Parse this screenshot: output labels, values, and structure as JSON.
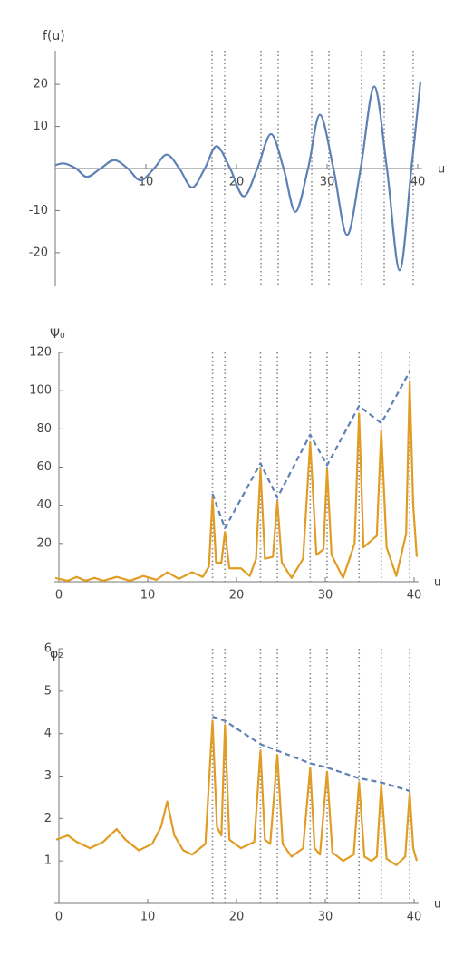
{
  "chart_data": [
    {
      "type": "line",
      "y_label": "f(u)",
      "x_label": "u",
      "xlim": [
        0,
        40.5
      ],
      "ylim": [
        -28,
        28
      ],
      "xticks": [
        10,
        20,
        30,
        40
      ],
      "yticks": [
        -20,
        -10,
        10,
        20
      ],
      "vlines": [
        17.3,
        18.7,
        22.7,
        24.6,
        28.3,
        30.2,
        33.8,
        36.3,
        39.5
      ],
      "series": [
        {
          "color": "#5e81b5",
          "dashed": false,
          "smooth": true,
          "x": [
            0,
            1,
            2.3,
            3.5,
            5,
            6.5,
            8,
            9.4,
            10.9,
            12.3,
            13.7,
            15.1,
            16.5,
            17.8,
            19.3,
            20.8,
            22.3,
            23.8,
            25.2,
            26.5,
            27.9,
            29.2,
            30.7,
            32.2,
            33.7,
            35.2,
            36.6,
            38.0,
            39.3,
            40.3
          ],
          "values": [
            0.8,
            1.2,
            0,
            -2,
            0,
            2,
            0,
            -2.8,
            0,
            3.3,
            0,
            -4.5,
            0,
            5.3,
            0,
            -6.6,
            0,
            8.2,
            0,
            -10.3,
            0,
            12.8,
            0,
            -15.8,
            0,
            19.5,
            0,
            -24.2,
            0,
            20.7
          ]
        }
      ]
    },
    {
      "type": "line",
      "y_label": "Ψ₀",
      "x_label": "u",
      "xlim": [
        -0.5,
        40.5
      ],
      "ylim": [
        0,
        120
      ],
      "xticks": [
        0,
        10,
        20,
        30,
        40
      ],
      "yticks": [
        20,
        40,
        60,
        80,
        100,
        120
      ],
      "vlines": [
        17.3,
        18.7,
        22.7,
        24.6,
        28.3,
        30.2,
        33.8,
        36.3,
        39.5
      ],
      "series": [
        {
          "color": "#e19c24",
          "dashed": false,
          "smooth": false,
          "x": [
            -0.4,
            0,
            1,
            2,
            3,
            4,
            5,
            6.5,
            8,
            9.5,
            11,
            12.2,
            13.5,
            15,
            16.2,
            16.9,
            17.3,
            17.7,
            18.3,
            18.7,
            19.2,
            20.5,
            21.5,
            22.2,
            22.7,
            23.2,
            24.1,
            24.6,
            25.1,
            26.2,
            27.5,
            28.3,
            29,
            29.8,
            30.2,
            30.7,
            32,
            33.3,
            33.8,
            34.3,
            35.8,
            36.3,
            36.9,
            38,
            39.1,
            39.5,
            39.9,
            40.3
          ],
          "values": [
            2,
            1.5,
            0.5,
            2.5,
            0.5,
            2,
            0.5,
            2.5,
            0.5,
            3,
            1,
            5,
            1.5,
            5,
            2.5,
            8,
            44,
            10,
            10,
            26,
            7,
            7,
            3,
            12,
            59,
            12,
            13,
            42,
            10,
            2,
            12,
            73,
            14,
            17,
            59,
            14,
            2,
            20,
            88,
            18,
            24,
            79,
            18,
            3,
            25,
            105,
            40,
            13
          ]
        },
        {
          "color": "#5e81b5",
          "dashed": true,
          "smooth": false,
          "x": [
            17.3,
            18.7,
            22.7,
            24.6,
            28.3,
            30.2,
            33.8,
            36.3,
            39.5
          ],
          "values": [
            46,
            28,
            62,
            44,
            77,
            61,
            92,
            83,
            110
          ]
        }
      ]
    },
    {
      "type": "line",
      "y_label": "φ₂",
      "x_label": "u",
      "xlim": [
        -0.5,
        40.5
      ],
      "ylim": [
        0,
        6
      ],
      "xticks": [
        0,
        10,
        20,
        30,
        40
      ],
      "yticks": [
        1,
        2,
        3,
        4,
        5,
        6
      ],
      "vlines": [
        17.3,
        18.7,
        22.7,
        24.6,
        28.3,
        30.2,
        33.8,
        36.3,
        39.5
      ],
      "series": [
        {
          "color": "#e19c24",
          "dashed": false,
          "smooth": false,
          "x": [
            -0.3,
            1,
            2,
            3.5,
            5,
            6.5,
            7.5,
            9,
            10.5,
            11.5,
            12.2,
            13,
            14,
            15,
            16.5,
            17.3,
            17.8,
            18.3,
            18.7,
            19.2,
            20.5,
            22,
            22.7,
            23.2,
            23.8,
            24.6,
            25.2,
            26.2,
            27.5,
            28.3,
            28.8,
            29.4,
            30.2,
            30.8,
            32,
            33.2,
            33.8,
            34.4,
            35.2,
            35.8,
            36.3,
            36.9,
            38,
            39,
            39.5,
            39.9,
            40.3
          ],
          "values": [
            1.5,
            1.6,
            1.45,
            1.3,
            1.45,
            1.75,
            1.5,
            1.25,
            1.4,
            1.8,
            2.4,
            1.6,
            1.25,
            1.15,
            1.4,
            4.3,
            1.8,
            1.6,
            4.2,
            1.5,
            1.3,
            1.45,
            3.6,
            1.5,
            1.4,
            3.5,
            1.4,
            1.1,
            1.3,
            3.2,
            1.3,
            1.15,
            3.1,
            1.2,
            1.0,
            1.15,
            2.85,
            1.1,
            1.0,
            1.1,
            2.8,
            1.05,
            0.9,
            1.1,
            2.6,
            1.3,
            1.0
          ]
        },
        {
          "color": "#5e81b5",
          "dashed": true,
          "smooth": false,
          "x": [
            17.3,
            18.7,
            22.7,
            24.6,
            28.3,
            30.2,
            33.8,
            36.3,
            39.5
          ],
          "values": [
            4.4,
            4.3,
            3.75,
            3.6,
            3.3,
            3.2,
            2.95,
            2.85,
            2.65
          ]
        }
      ]
    }
  ]
}
